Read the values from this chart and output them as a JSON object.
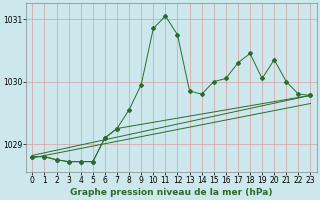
{
  "title": "Graphe pression niveau de la mer (hPa)",
  "background_color": "#cde8ec",
  "grid_color_v": "#d4a0a0",
  "grid_color_h": "#d4a0a0",
  "line_color": "#2d6a2d",
  "xlim": [
    -0.5,
    23.5
  ],
  "ylim": [
    1028.55,
    1031.25
  ],
  "yticks": [
    1029,
    1030,
    1031
  ],
  "xticks": [
    0,
    1,
    2,
    3,
    4,
    5,
    6,
    7,
    8,
    9,
    10,
    11,
    12,
    13,
    14,
    15,
    16,
    17,
    18,
    19,
    20,
    21,
    22,
    23
  ],
  "series1_x": [
    0,
    1,
    2,
    3,
    4,
    5,
    6,
    7,
    8,
    9,
    10,
    11,
    12,
    13,
    14,
    15,
    16,
    17,
    18,
    19,
    20,
    21,
    22,
    23
  ],
  "series1_y": [
    1028.8,
    1028.8,
    1028.75,
    1028.72,
    1028.72,
    1028.72,
    1029.1,
    1029.25,
    1029.55,
    1029.95,
    1030.85,
    1031.05,
    1030.75,
    1029.85,
    1029.8,
    1030.0,
    1030.05,
    1030.3,
    1030.45,
    1030.05,
    1030.35,
    1030.0,
    1029.8,
    1029.78
  ],
  "series2_x": [
    0,
    1,
    2,
    3,
    4,
    5,
    6,
    7,
    23
  ],
  "series2_y": [
    1028.8,
    1028.8,
    1028.75,
    1028.72,
    1028.72,
    1028.72,
    1029.1,
    1029.25,
    1029.78
  ],
  "series3_x": [
    0,
    23
  ],
  "series3_y": [
    1028.78,
    1029.65
  ],
  "series4_x": [
    0,
    23
  ],
  "series4_y": [
    1028.82,
    1029.78
  ],
  "tick_fontsize": 5.5,
  "title_fontsize": 6.5
}
